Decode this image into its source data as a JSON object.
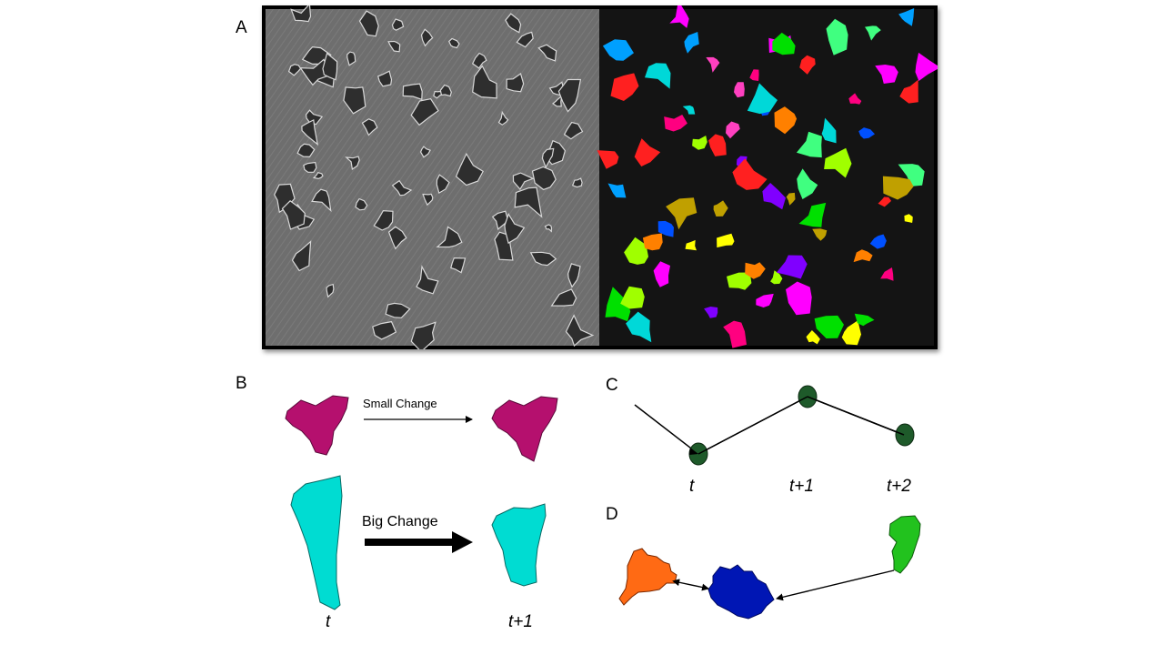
{
  "panels": {
    "a": {
      "letter": "A"
    },
    "b": {
      "letter": "B",
      "small_change_label": "Small Change",
      "big_change_label": "Big Change",
      "time_t": "t",
      "time_t1": "t+1"
    },
    "c": {
      "letter": "C",
      "time_t": "t",
      "time_t1": "t+1",
      "time_t2": "t+2"
    },
    "d": {
      "letter": "D"
    }
  },
  "colors": {
    "magenta_cell": "#b5106e",
    "cyan_cell": "#00dcd2",
    "track_dot": "#1e5a2a",
    "orange_cell": "#ff6a14",
    "blue_cell": "#0016b4",
    "green_cell": "#22c21e",
    "phase_background": "#707070",
    "mask_background": "#141414"
  }
}
